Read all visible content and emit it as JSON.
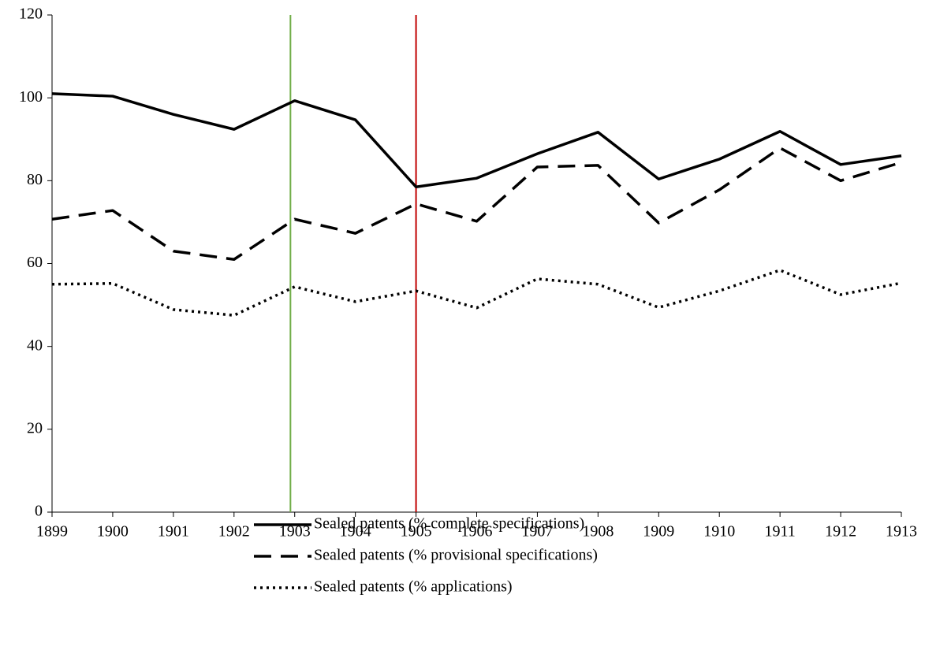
{
  "chart_data": {
    "type": "line",
    "x": [
      1899,
      1900,
      1901,
      1902,
      1903,
      1904,
      1905,
      1906,
      1907,
      1908,
      1909,
      1910,
      1911,
      1912,
      1913
    ],
    "xlim": [
      1899,
      1913
    ],
    "xticks": [
      1899,
      1900,
      1901,
      1902,
      1903,
      1904,
      1905,
      1906,
      1907,
      1908,
      1909,
      1910,
      1911,
      1912,
      1913
    ],
    "ylim": [
      0,
      120
    ],
    "yticks": [
      0,
      20,
      40,
      60,
      80,
      100,
      120
    ],
    "grid": false,
    "legend": "bottom",
    "series": [
      {
        "name": "Sealed patents (% complete specifications)",
        "color": "#000000",
        "dash": "solid",
        "values": [
          101,
          100.4,
          96,
          92.4,
          99.3,
          94.7,
          78.5,
          80.6,
          86.5,
          91.7,
          80.4,
          85.2,
          91.9,
          83.9,
          86
        ]
      },
      {
        "name": "Sealed patents (% provisional specifications)",
        "color": "#000000",
        "dash": "dashed",
        "values": [
          70.7,
          72.8,
          63,
          61,
          70.7,
          67.3,
          74.4,
          70.2,
          83.3,
          83.7,
          69.8,
          77.8,
          87.9,
          80,
          84.4
        ]
      },
      {
        "name": "Sealed patents (% applications)",
        "color": "#000000",
        "dash": "dotted",
        "values": [
          55,
          55.2,
          48.9,
          47.5,
          54.4,
          50.8,
          53.4,
          49.3,
          56.3,
          55,
          49.4,
          53.4,
          58.4,
          52.5,
          55.3
        ]
      }
    ],
    "vlines": [
      {
        "x": 1902.93,
        "color": "#70ad47"
      },
      {
        "x": 1905,
        "color": "#c00000"
      }
    ]
  }
}
